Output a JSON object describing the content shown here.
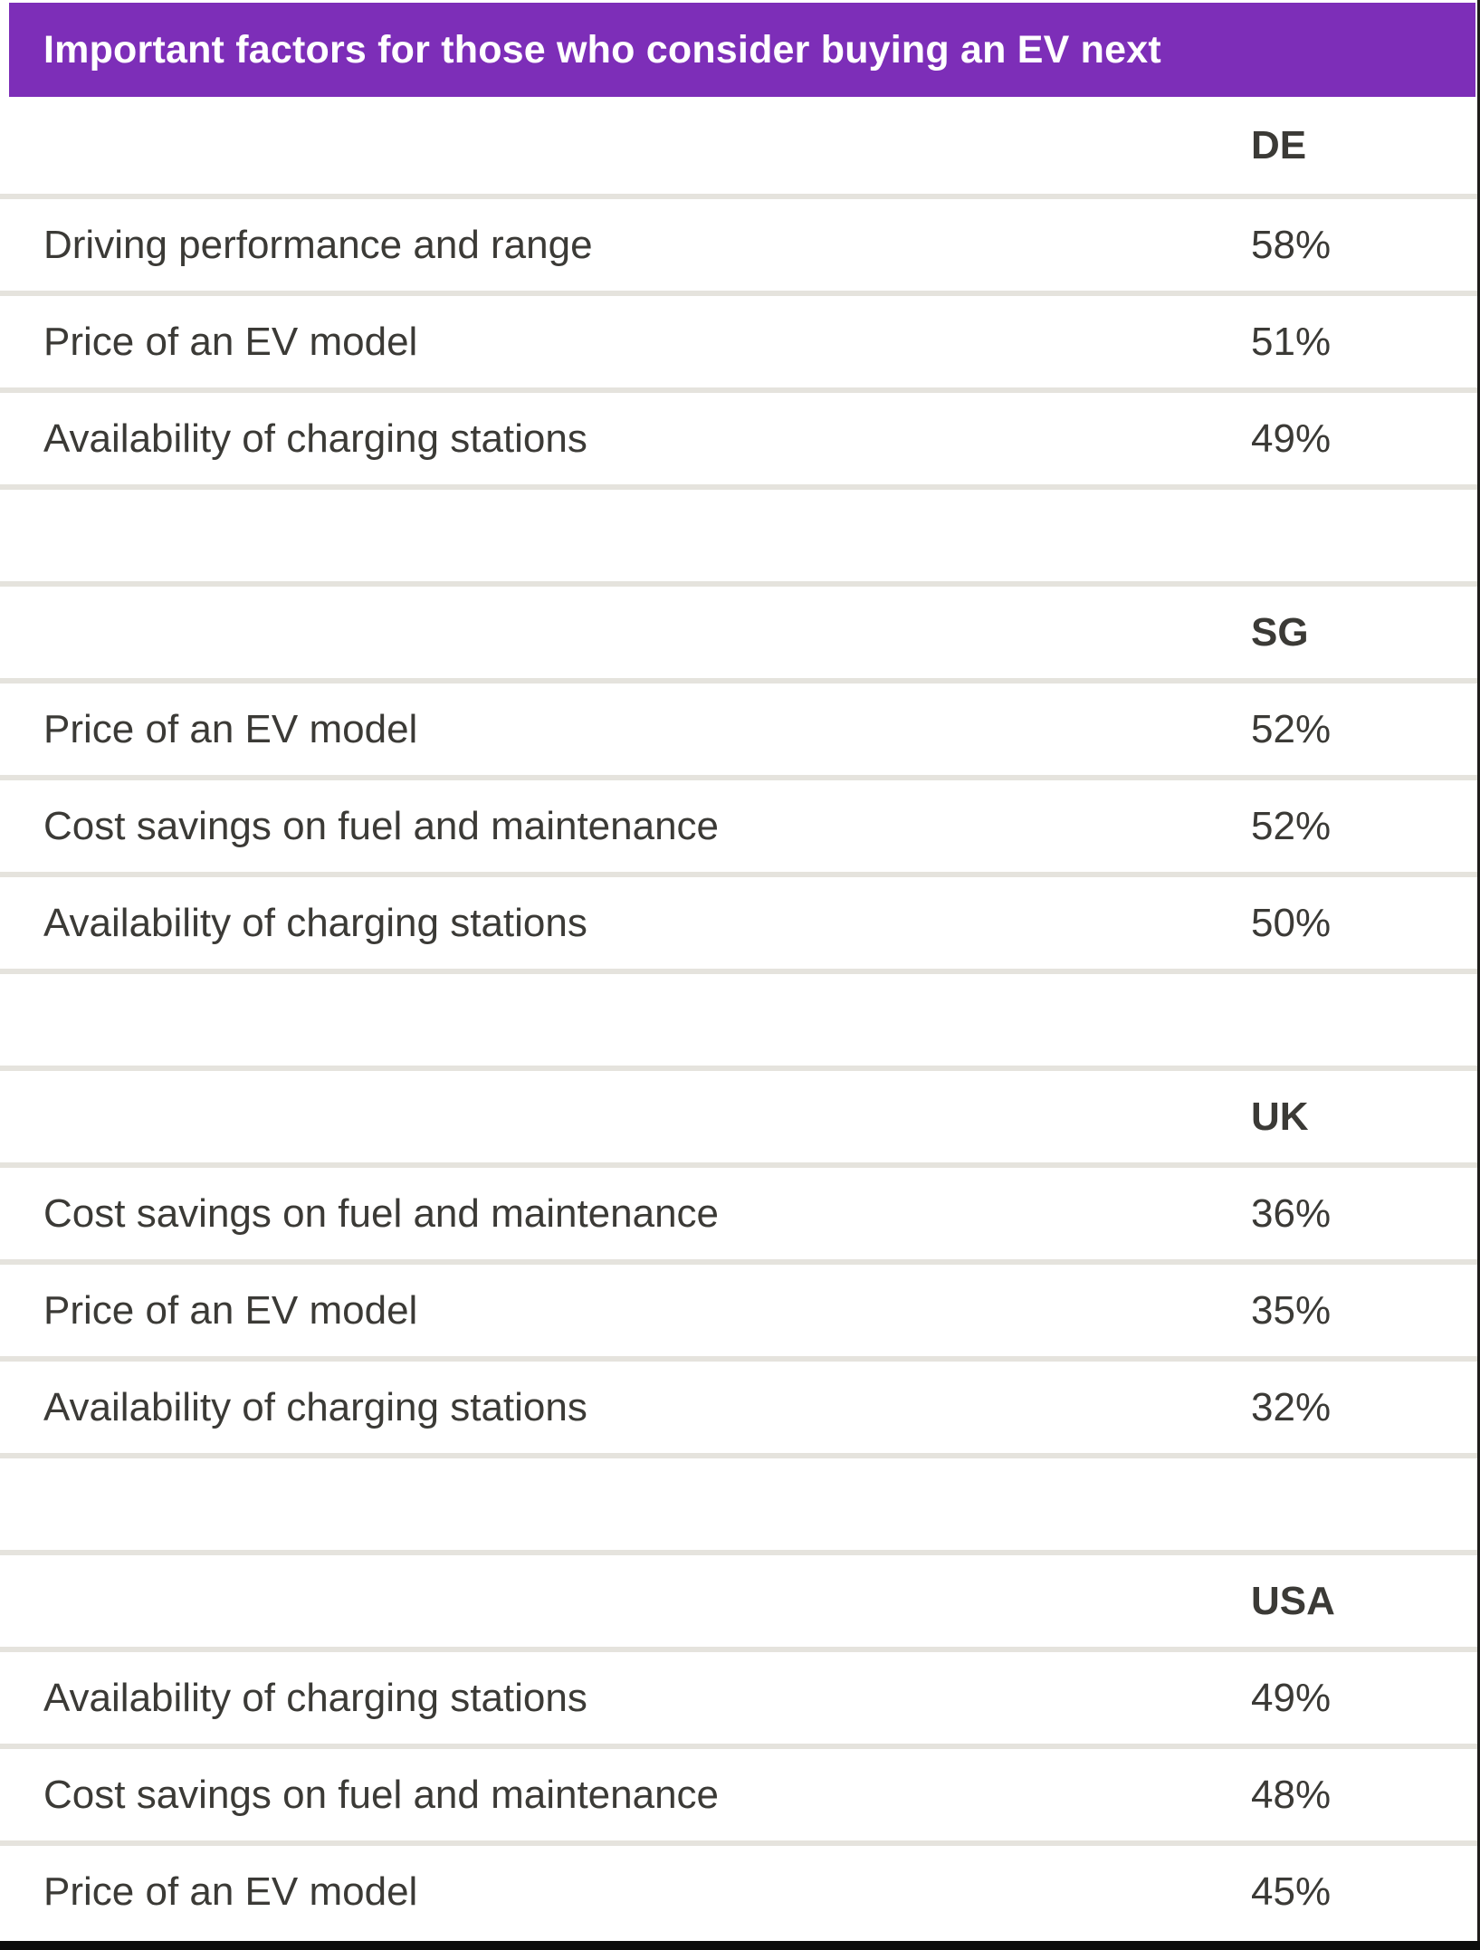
{
  "title": "Important factors for those who consider buying an EV next",
  "colors": {
    "header-bg": "#7D2EB8",
    "header-text": "#FFFFFF",
    "row-text": "#3B3A36",
    "divider": "#E5E3DD",
    "border-dark": "#1F1D1B",
    "bottom-bar": "#0C0C0C"
  },
  "sections": [
    {
      "country": "DE",
      "rows": [
        {
          "label": "Driving performance and range",
          "value": "58%"
        },
        {
          "label": "Price of an EV model",
          "value": "51%"
        },
        {
          "label": "Availability of charging stations",
          "value": "49%"
        }
      ]
    },
    {
      "country": "SG",
      "rows": [
        {
          "label": "Price of an EV model",
          "value": "52%"
        },
        {
          "label": "Cost savings on fuel and maintenance",
          "value": "52%"
        },
        {
          "label": "Availability of charging stations",
          "value": "50%"
        }
      ]
    },
    {
      "country": "UK",
      "rows": [
        {
          "label": "Cost savings on fuel and maintenance",
          "value": "36%"
        },
        {
          "label": "Price of an EV model",
          "value": "35%"
        },
        {
          "label": "Availability of charging stations",
          "value": "32%"
        }
      ]
    },
    {
      "country": "USA",
      "rows": [
        {
          "label": "Availability of charging stations",
          "value": "49%"
        },
        {
          "label": "Cost savings on fuel and maintenance",
          "value": "48%"
        },
        {
          "label": "Price of an EV model",
          "value": "45%"
        }
      ]
    }
  ],
  "chart_data": {
    "type": "table",
    "title": "Important factors for those who consider buying an EV next",
    "value_unit": "%",
    "groups": [
      {
        "country": "DE",
        "factors": [
          "Driving performance and range",
          "Price of an EV model",
          "Availability of charging stations"
        ],
        "values_pct": [
          58,
          51,
          49
        ]
      },
      {
        "country": "SG",
        "factors": [
          "Price of an EV model",
          "Cost savings on fuel and maintenance",
          "Availability of charging stations"
        ],
        "values_pct": [
          52,
          52,
          50
        ]
      },
      {
        "country": "UK",
        "factors": [
          "Cost savings on fuel and maintenance",
          "Price of an EV model",
          "Availability of charging stations"
        ],
        "values_pct": [
          36,
          35,
          32
        ]
      },
      {
        "country": "USA",
        "factors": [
          "Availability of charging stations",
          "Cost savings on fuel and maintenance",
          "Price of an EV model"
        ],
        "values_pct": [
          49,
          48,
          45
        ]
      }
    ],
    "layout": {
      "grid": "horizontal dividers only",
      "legend": "none",
      "value_column": "left-aligned right column"
    }
  }
}
